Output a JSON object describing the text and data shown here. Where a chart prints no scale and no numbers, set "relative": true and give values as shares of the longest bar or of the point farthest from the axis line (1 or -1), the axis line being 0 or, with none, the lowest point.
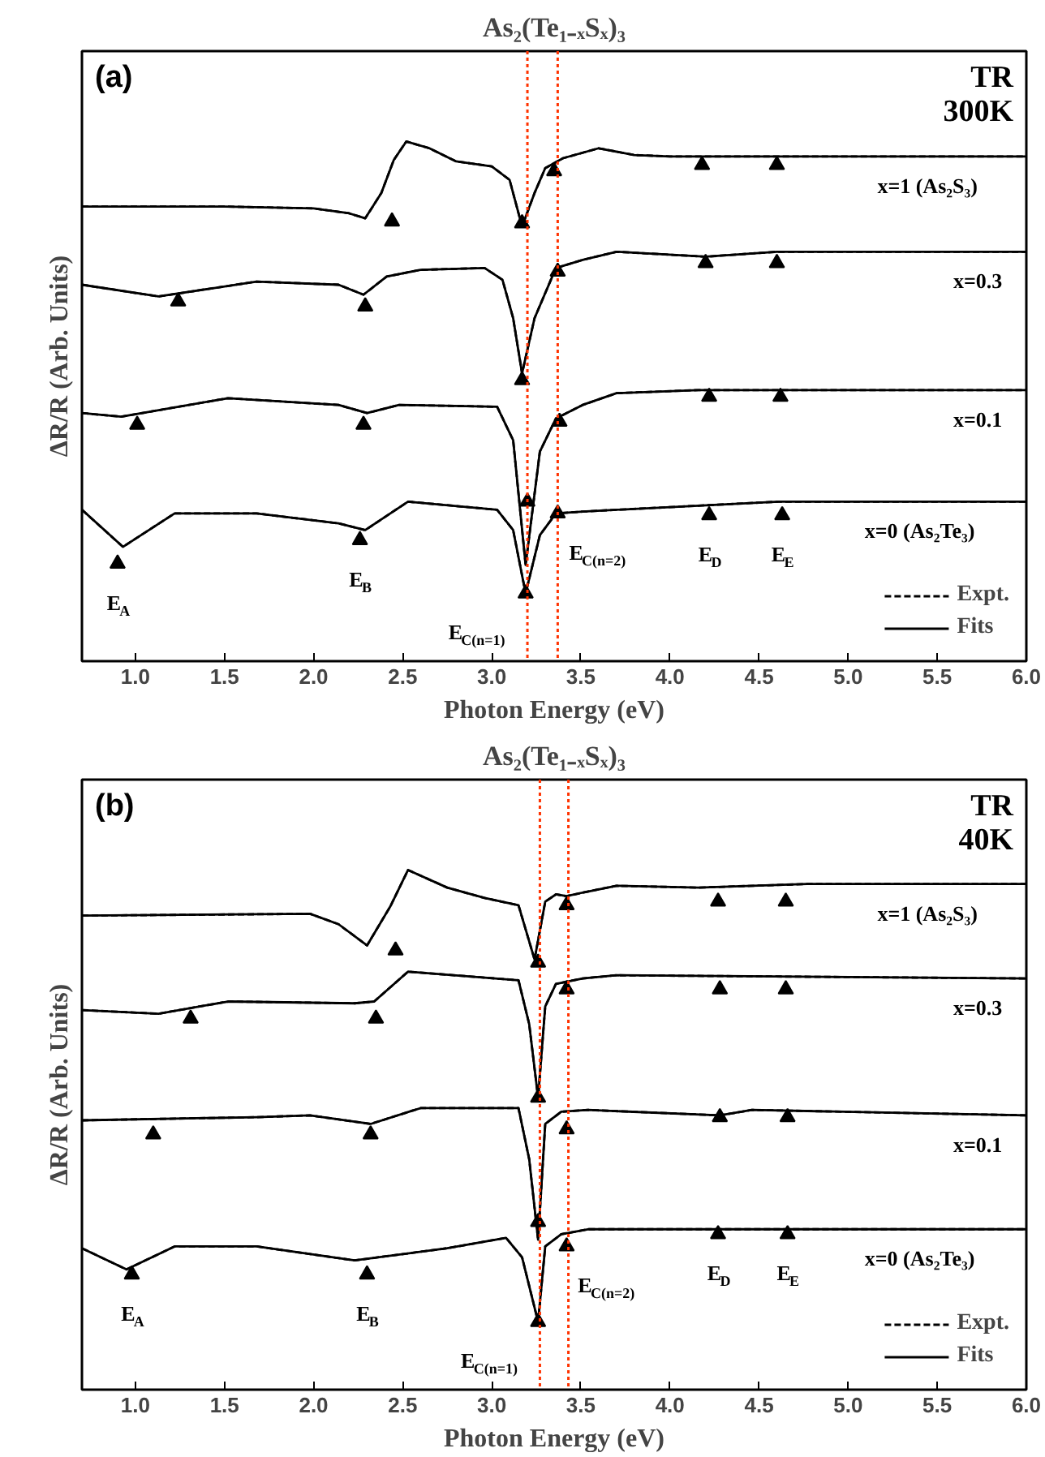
{
  "chart_data": [
    {
      "type": "line",
      "title": "As₂(Te₁₋ₓSₓ)₃",
      "xlabel": "Photon Energy (eV)",
      "ylabel": "ΔR/R (Arb. Units)",
      "relative": true,
      "grid": false,
      "legend": "bottom right",
      "xlim": [
        0.7,
        6.0
      ],
      "xticks": [
        {
          "value": 1,
          "label": "1.0"
        },
        {
          "value": 1.5,
          "label": "1.5"
        },
        {
          "value": 2,
          "label": "2.0"
        },
        {
          "value": 2.5,
          "label": "2.5"
        },
        {
          "value": 3,
          "label": "3.0"
        },
        {
          "value": 3.5,
          "label": "3.5"
        },
        {
          "value": 4,
          "label": "4.0"
        },
        {
          "value": 4.5,
          "label": "4.5"
        },
        {
          "value": 5,
          "label": "5.0"
        },
        {
          "value": 5.5,
          "label": "5.5"
        },
        {
          "value": 6,
          "label": "6.0"
        }
      ],
      "ref_lines": [
        {
          "axis": "x",
          "value": 3.2,
          "label": null,
          "color": "#ff3300",
          "line_style": "dotted"
        },
        {
          "axis": "x",
          "value": 3.37,
          "label": null,
          "color": "#ff3300",
          "line_style": "dotted"
        }
      ],
      "annotations": [
        "(a)",
        "TR\n300K",
        {
          "text": "x=1 (As₂S₃)",
          "x": 6.0,
          "y": 0.967
        },
        {
          "text": "x=0.3",
          "x": 6.0,
          "y": 0.756
        },
        {
          "text": "x=0.1",
          "x": 6.0,
          "y": 0.45
        },
        {
          "text": "x=0 (As₂Te₃)",
          "x": 6.0,
          "y": 0.203
        },
        {
          "text": "E$_{A}$",
          "x": 0.9,
          "y": 0.066
        },
        {
          "text": "E$_{B}$",
          "x": 2.26,
          "y": 0.118
        },
        {
          "text": "E$_{C(n=1)}$",
          "x": 3.19,
          "y": 0.0
        },
        {
          "text": "E$_{C(n=2)}$",
          "x": 3.37,
          "y": 0.177
        },
        {
          "text": "E$_{D}$",
          "x": 4.22,
          "y": 0.173
        },
        {
          "text": "E$_{E}$",
          "x": 4.63,
          "y": 0.173
        }
      ],
      "series": [
        {
          "color": "#000000",
          "line_style": "solid",
          "x": [
            0.7,
            1.5,
            2.0,
            2.2,
            2.29,
            2.38,
            2.45,
            2.52,
            2.65,
            2.8,
            3.0,
            3.1,
            3.17,
            3.24,
            3.3,
            3.4,
            3.6,
            3.8,
            4.0,
            6.0
          ],
          "values": [
            0.856,
            0.856,
            0.852,
            0.841,
            0.83,
            0.886,
            0.959,
            1.0,
            0.985,
            0.956,
            0.945,
            0.915,
            0.812,
            0.886,
            0.941,
            0.963,
            0.985,
            0.97,
            0.967,
            0.967
          ]
        },
        {
          "color": "#000000",
          "line_style": "dashed",
          "x": [
            0.7,
            1.5,
            2.0,
            2.2,
            2.29,
            2.38,
            2.45,
            2.52,
            2.65,
            2.8,
            3.0,
            3.1,
            3.17,
            3.24,
            3.3,
            3.4,
            3.6,
            3.8,
            4.0,
            6.0
          ],
          "values": [
            0.856,
            0.856,
            0.852,
            0.841,
            0.83,
            0.886,
            0.959,
            1.0,
            0.985,
            0.956,
            0.945,
            0.915,
            0.812,
            0.886,
            0.941,
            0.963,
            0.985,
            0.97,
            0.967,
            0.967
          ]
        },
        {
          "color": "#000000",
          "line_style": "solid",
          "x": [
            0.7,
            1.13,
            1.68,
            2.14,
            2.28,
            2.41,
            2.6,
            2.96,
            3.06,
            3.12,
            3.17,
            3.24,
            3.36,
            3.51,
            3.7,
            4.2,
            4.6,
            6.0
          ],
          "values": [
            0.683,
            0.657,
            0.69,
            0.683,
            0.661,
            0.701,
            0.716,
            0.72,
            0.694,
            0.609,
            0.487,
            0.609,
            0.72,
            0.738,
            0.756,
            0.745,
            0.756,
            0.756
          ]
        },
        {
          "color": "#000000",
          "line_style": "dashed",
          "x": [
            0.7,
            1.13,
            1.68,
            2.14,
            2.28,
            2.41,
            2.6,
            2.96,
            3.06,
            3.12,
            3.17,
            3.24,
            3.36,
            3.51,
            3.7,
            4.2,
            4.6,
            6.0
          ],
          "values": [
            0.683,
            0.657,
            0.69,
            0.683,
            0.661,
            0.701,
            0.716,
            0.72,
            0.694,
            0.609,
            0.487,
            0.609,
            0.72,
            0.738,
            0.756,
            0.745,
            0.756,
            0.756
          ]
        },
        {
          "color": "#000000",
          "line_style": "solid",
          "x": [
            0.7,
            0.92,
            1.52,
            2.14,
            2.3,
            2.48,
            3.03,
            3.12,
            3.19,
            3.27,
            3.36,
            3.51,
            3.7,
            4.16,
            6.0
          ],
          "values": [
            0.399,
            0.391,
            0.432,
            0.417,
            0.399,
            0.417,
            0.413,
            0.339,
            0.063,
            0.314,
            0.387,
            0.417,
            0.443,
            0.45,
            0.45
          ]
        },
        {
          "color": "#000000",
          "line_style": "dashed",
          "x": [
            0.7,
            0.92,
            1.52,
            2.14,
            2.3,
            2.48,
            3.03,
            3.12,
            3.19,
            3.27,
            3.36,
            3.51,
            3.7,
            4.16,
            6.0
          ],
          "values": [
            0.399,
            0.391,
            0.432,
            0.417,
            0.399,
            0.417,
            0.413,
            0.339,
            0.063,
            0.314,
            0.387,
            0.417,
            0.443,
            0.45,
            0.45
          ]
        },
        {
          "name": "Expt.",
          "color": "#000000",
          "line_style": "dashed",
          "x": [
            0.7,
            0.93,
            1.22,
            1.68,
            2.14,
            2.29,
            2.53,
            3.03,
            3.12,
            3.19,
            3.27,
            3.36,
            3.51,
            3.7,
            4.61,
            6.0
          ],
          "values": [
            0.185,
            0.103,
            0.177,
            0.177,
            0.155,
            0.14,
            0.203,
            0.185,
            0.14,
            0.0,
            0.129,
            0.177,
            0.181,
            0.185,
            0.203,
            0.203
          ]
        },
        {
          "name": "Fits",
          "color": "#000000",
          "line_style": "solid",
          "x": [
            0.7,
            0.93,
            1.22,
            1.68,
            2.14,
            2.29,
            2.53,
            3.03,
            3.12,
            3.19,
            3.27,
            3.36,
            3.51,
            3.7,
            4.61,
            6.0
          ],
          "values": [
            0.185,
            0.103,
            0.177,
            0.177,
            0.155,
            0.14,
            0.203,
            0.185,
            0.14,
            0.0,
            0.129,
            0.177,
            0.181,
            0.185,
            0.203,
            0.203
          ]
        },
        {
          "type": "scatter",
          "marker": "triangle",
          "color": "#000000",
          "x": [
            2.44,
            3.17,
            3.35,
            4.18,
            4.6,
            1.24,
            2.29,
            3.17,
            3.37,
            4.2,
            4.6,
            1.01,
            2.28,
            3.2,
            3.38,
            4.22,
            4.62,
            0.9,
            2.26,
            3.19,
            3.37,
            4.22,
            4.63
          ],
          "values": [
            0.823,
            0.819,
            0.934,
            0.948,
            0.948,
            0.646,
            0.635,
            0.472,
            0.712,
            0.731,
            0.731,
            0.373,
            0.373,
            0.203,
            0.38,
            0.435,
            0.435,
            0.066,
            0.118,
            0.0,
            0.177,
            0.173,
            0.173
          ]
        }
      ]
    },
    {
      "type": "line",
      "title": "As₂(Te₁₋ₓSₓ)₃",
      "xlabel": "Photon Energy (eV)",
      "ylabel": "ΔR/R (Arb. Units)",
      "relative": true,
      "grid": false,
      "legend": "bottom right",
      "xlim": [
        0.7,
        6.0
      ],
      "xticks": [
        {
          "value": 1,
          "label": "1.0"
        },
        {
          "value": 1.5,
          "label": "1.5"
        },
        {
          "value": 2,
          "label": "2.0"
        },
        {
          "value": 2.5,
          "label": "2.5"
        },
        {
          "value": 3,
          "label": "3.0"
        },
        {
          "value": 3.5,
          "label": "3.5"
        },
        {
          "value": 4,
          "label": "4.0"
        },
        {
          "value": 4.5,
          "label": "4.5"
        },
        {
          "value": 5,
          "label": "5.0"
        },
        {
          "value": 5.5,
          "label": "5.5"
        },
        {
          "value": 6,
          "label": "6.0"
        }
      ],
      "ref_lines": [
        {
          "axis": "x",
          "value": 3.27,
          "label": null,
          "color": "#ff3300",
          "line_style": "dotted"
        },
        {
          "axis": "x",
          "value": 3.43,
          "label": null,
          "color": "#ff3300",
          "line_style": "dotted"
        }
      ],
      "annotations": [
        "(b)",
        "TR\n40K",
        {
          "text": "x=1 (As₂S₃)",
          "x": 6.0,
          "y": 0.969
        },
        {
          "text": "x=0.3",
          "x": 6.0,
          "y": 0.76
        },
        {
          "text": "x=0.1",
          "x": 6.0,
          "y": 0.457
        },
        {
          "text": "x=0 (As₂Te₃)",
          "x": 6.0,
          "y": 0.205
        },
        {
          "text": "E$_{A}$",
          "x": 0.98,
          "y": 0.105
        },
        {
          "text": "E$_{B}$",
          "x": 2.3,
          "y": 0.105
        },
        {
          "text": "E$_{C(n=1)}$",
          "x": 3.26,
          "y": 0.0
        },
        {
          "text": "E$_{C(n=2)}$",
          "x": 3.42,
          "y": 0.167
        },
        {
          "text": "E$_{D}$",
          "x": 4.27,
          "y": 0.194
        },
        {
          "text": "E$_{E}$",
          "x": 4.66,
          "y": 0.194
        }
      ],
      "series": [
        {
          "color": "#000000",
          "line_style": "solid",
          "x": [
            0.7,
            1.98,
            2.14,
            2.3,
            2.43,
            2.53,
            2.75,
            2.96,
            3.15,
            3.24,
            3.3,
            3.36,
            3.42,
            3.51,
            3.7,
            4.16,
            4.77,
            6.0
          ],
          "values": [
            0.899,
            0.903,
            0.88,
            0.833,
            0.919,
            1.0,
            0.961,
            0.938,
            0.922,
            0.802,
            0.93,
            0.946,
            0.942,
            0.95,
            0.965,
            0.961,
            0.969,
            0.969
          ]
        },
        {
          "color": "#000000",
          "line_style": "dashed",
          "x": [
            0.7,
            1.98,
            2.14,
            2.3,
            2.43,
            2.53,
            2.75,
            2.96,
            3.15,
            3.24,
            3.3,
            3.36,
            3.42,
            3.51,
            3.7,
            4.16,
            4.77,
            6.0
          ],
          "values": [
            0.899,
            0.903,
            0.88,
            0.833,
            0.919,
            1.0,
            0.961,
            0.938,
            0.922,
            0.802,
            0.93,
            0.946,
            0.942,
            0.95,
            0.965,
            0.961,
            0.969,
            0.969
          ]
        },
        {
          "color": "#000000",
          "line_style": "solid",
          "x": [
            0.7,
            1.13,
            1.52,
            2.23,
            2.34,
            2.53,
            3.15,
            3.21,
            3.26,
            3.3,
            3.36,
            3.51,
            3.7,
            6.0
          ],
          "values": [
            0.69,
            0.682,
            0.709,
            0.705,
            0.709,
            0.775,
            0.756,
            0.659,
            0.496,
            0.698,
            0.748,
            0.76,
            0.767,
            0.76
          ]
        },
        {
          "color": "#000000",
          "line_style": "dashed",
          "x": [
            0.7,
            1.13,
            1.52,
            2.23,
            2.34,
            2.53,
            3.15,
            3.21,
            3.26,
            3.3,
            3.36,
            3.51,
            3.7,
            6.0
          ],
          "values": [
            0.69,
            0.682,
            0.709,
            0.705,
            0.709,
            0.775,
            0.756,
            0.659,
            0.496,
            0.698,
            0.748,
            0.76,
            0.767,
            0.76
          ]
        },
        {
          "color": "#000000",
          "line_style": "solid",
          "x": [
            0.7,
            1.68,
            1.98,
            2.32,
            2.6,
            3.15,
            3.21,
            3.26,
            3.3,
            3.39,
            3.54,
            4.28,
            4.46,
            6.0
          ],
          "values": [
            0.446,
            0.453,
            0.457,
            0.438,
            0.473,
            0.473,
            0.36,
            0.182,
            0.438,
            0.465,
            0.469,
            0.457,
            0.469,
            0.457
          ]
        },
        {
          "color": "#000000",
          "line_style": "dashed",
          "x": [
            0.7,
            1.68,
            1.98,
            2.32,
            2.6,
            3.15,
            3.21,
            3.26,
            3.3,
            3.39,
            3.54,
            4.28,
            4.46,
            6.0
          ],
          "values": [
            0.446,
            0.453,
            0.457,
            0.438,
            0.473,
            0.473,
            0.36,
            0.182,
            0.438,
            0.465,
            0.469,
            0.457,
            0.469,
            0.457
          ]
        },
        {
          "name": "Expt.",
          "color": "#000000",
          "line_style": "dashed",
          "x": [
            0.7,
            0.95,
            1.22,
            1.68,
            2.23,
            2.75,
            3.08,
            3.17,
            3.26,
            3.3,
            3.39,
            3.54,
            4.16,
            6.0
          ],
          "values": [
            0.163,
            0.116,
            0.167,
            0.167,
            0.136,
            0.163,
            0.186,
            0.143,
            0.0,
            0.167,
            0.194,
            0.205,
            0.205,
            0.205
          ]
        },
        {
          "name": "Fits",
          "color": "#000000",
          "line_style": "solid",
          "x": [
            0.7,
            0.95,
            1.22,
            1.68,
            2.23,
            2.75,
            3.08,
            3.17,
            3.26,
            3.3,
            3.39,
            3.54,
            4.16,
            6.0
          ],
          "values": [
            0.163,
            0.116,
            0.167,
            0.167,
            0.136,
            0.163,
            0.186,
            0.143,
            0.0,
            0.167,
            0.194,
            0.205,
            0.205,
            0.205
          ]
        },
        {
          "type": "scatter",
          "marker": "triangle",
          "color": "#000000",
          "x": [
            2.46,
            3.26,
            3.42,
            4.27,
            4.65,
            1.31,
            2.35,
            3.26,
            3.42,
            4.28,
            4.65,
            1.1,
            2.32,
            3.26,
            3.42,
            4.28,
            4.66,
            0.98,
            2.3,
            3.26,
            3.42,
            4.27,
            4.66
          ],
          "values": [
            0.822,
            0.795,
            0.922,
            0.93,
            0.93,
            0.671,
            0.671,
            0.496,
            0.736,
            0.736,
            0.736,
            0.415,
            0.415,
            0.221,
            0.426,
            0.453,
            0.453,
            0.105,
            0.105,
            0.0,
            0.167,
            0.194,
            0.194
          ]
        }
      ]
    }
  ]
}
